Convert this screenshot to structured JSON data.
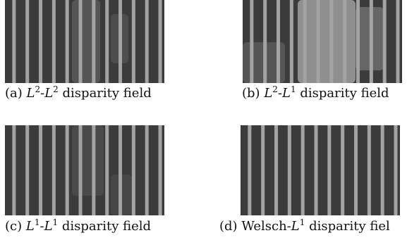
{
  "figure": {
    "panels": [
      {
        "id": "a",
        "label": "(a)",
        "method_prefix": "L",
        "sup1": "2",
        "sep": "-",
        "method_suffix": "L",
        "sup2": "2",
        "tail": "disparity field"
      },
      {
        "id": "b",
        "label": "(b)",
        "method_prefix": "L",
        "sup1": "2",
        "sep": "-",
        "method_suffix": "L",
        "sup2": "1",
        "tail": "disparity field"
      },
      {
        "id": "c",
        "label": "(c)",
        "method_prefix": "L",
        "sup1": "1",
        "sep": "-",
        "method_suffix": "L",
        "sup2": "1",
        "tail": "disparity field"
      },
      {
        "id": "d",
        "label": "(d)",
        "method_prefix": "Welsch",
        "sup1": "",
        "sep": "-",
        "method_suffix": "L",
        "sup2": "1",
        "tail": "disparity fiel"
      }
    ],
    "colors": {
      "stripe": "#a3a3a3",
      "background": "#3b3b3b",
      "blob": "#8c8c8c"
    }
  }
}
